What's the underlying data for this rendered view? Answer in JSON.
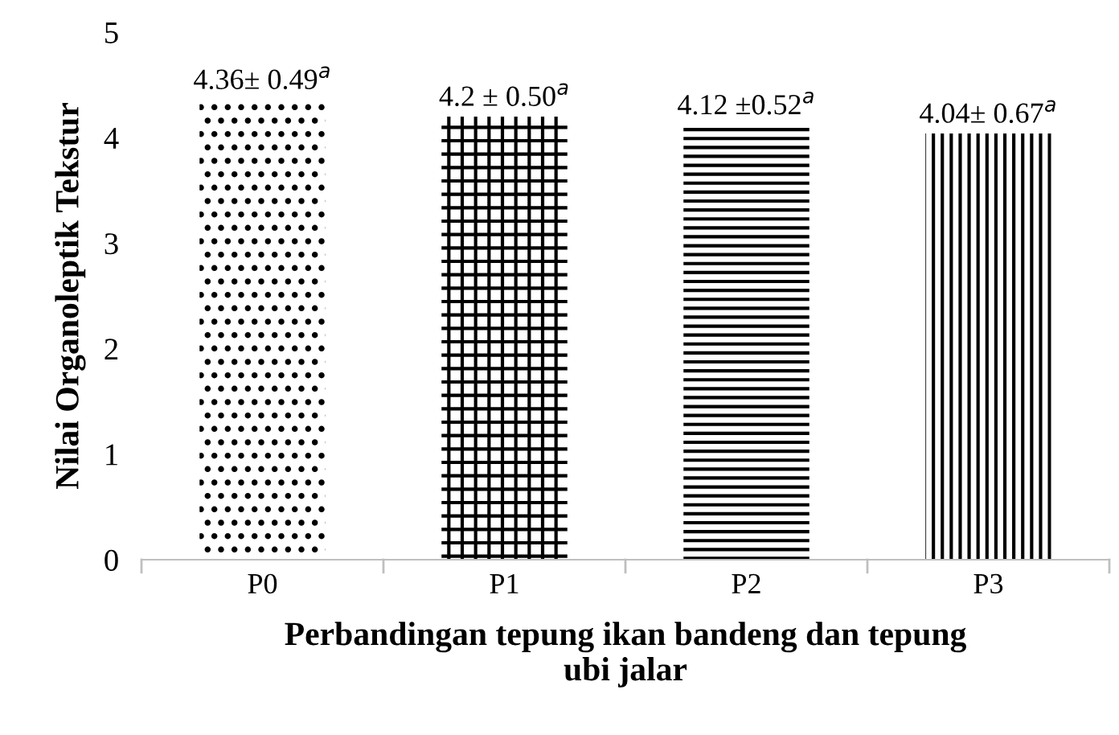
{
  "chart_data": {
    "type": "bar",
    "xlabel": "Perbandingan tepung ikan bandeng dan tepung\nubi jalar",
    "ylabel": "Nilai Organoleptik Tekstur",
    "categories": [
      "P0",
      "P1",
      "P2",
      "P3"
    ],
    "values": [
      4.36,
      4.2,
      4.12,
      4.04
    ],
    "color": "#000000",
    "value_labels": [
      "4.36± 0.49$^{a}$",
      "4.2 ± 0.50$^{a}$",
      "4.12 ±0.52$^{a}$",
      "4.04± 0.67$^{a}$"
    ],
    "ylim": [
      0,
      5
    ],
    "yticks": [
      0,
      1,
      2,
      3,
      4,
      5
    ],
    "grid": false,
    "legend": false
  }
}
